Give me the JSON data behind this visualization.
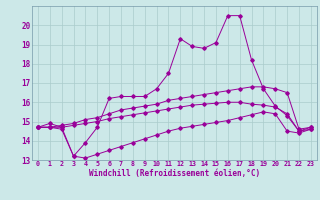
{
  "xlabel": "Windchill (Refroidissement éolien,°C)",
  "bg_color": "#cce8e8",
  "line_color": "#990099",
  "grid_color": "#aacccc",
  "spine_color": "#7799aa",
  "xmin": -0.5,
  "xmax": 23.5,
  "ymin": 13,
  "ymax": 21,
  "yticks": [
    13,
    14,
    15,
    16,
    17,
    18,
    19,
    20
  ],
  "xticks": [
    0,
    1,
    2,
    3,
    4,
    5,
    6,
    7,
    8,
    9,
    10,
    11,
    12,
    13,
    14,
    15,
    16,
    17,
    18,
    19,
    20,
    21,
    22,
    23
  ],
  "series": [
    [
      14.7,
      14.9,
      14.7,
      13.2,
      13.9,
      14.7,
      16.2,
      16.3,
      16.3,
      16.3,
      16.7,
      17.5,
      19.3,
      18.9,
      18.8,
      19.1,
      20.5,
      20.5,
      18.2,
      16.7,
      15.8,
      15.3,
      14.5,
      14.6
    ],
    [
      14.7,
      14.7,
      14.8,
      14.9,
      15.1,
      15.2,
      15.4,
      15.6,
      15.7,
      15.8,
      15.9,
      16.1,
      16.2,
      16.3,
      16.4,
      16.5,
      16.6,
      16.7,
      16.8,
      16.8,
      16.7,
      16.5,
      14.6,
      14.7
    ],
    [
      14.7,
      14.7,
      14.7,
      14.8,
      14.9,
      15.0,
      15.15,
      15.25,
      15.35,
      15.45,
      15.55,
      15.65,
      15.75,
      15.85,
      15.9,
      15.95,
      16.0,
      16.0,
      15.9,
      15.85,
      15.75,
      15.4,
      14.5,
      14.7
    ],
    [
      14.7,
      14.7,
      14.6,
      13.2,
      13.1,
      13.3,
      13.5,
      13.7,
      13.9,
      14.1,
      14.3,
      14.5,
      14.65,
      14.75,
      14.85,
      14.95,
      15.05,
      15.2,
      15.35,
      15.5,
      15.4,
      14.5,
      14.4,
      14.6
    ]
  ]
}
